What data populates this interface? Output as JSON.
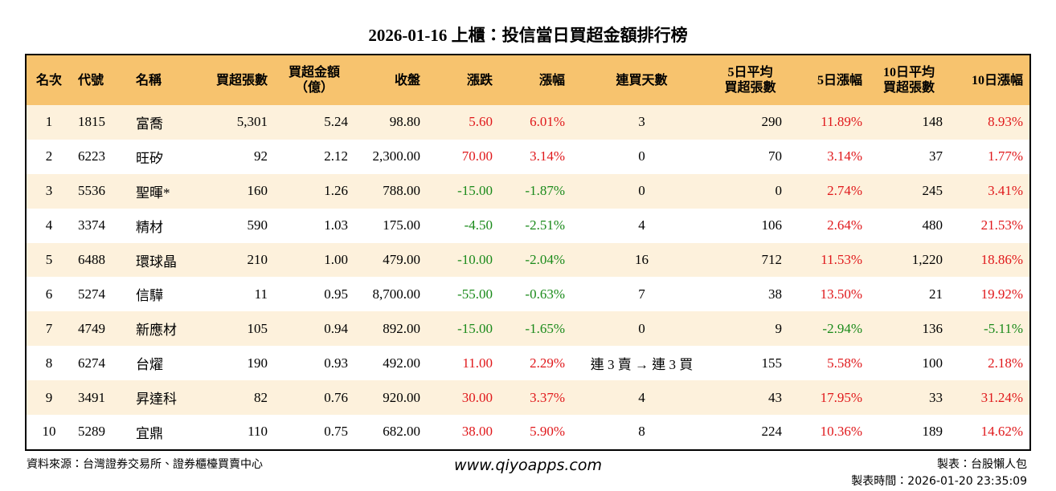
{
  "title": "2026-01-16 上櫃：投信當日買超金額排行榜",
  "table": {
    "header": [
      [
        "名次"
      ],
      [
        "代號"
      ],
      [
        "名稱"
      ],
      [
        "買超張數"
      ],
      [
        "買超金額",
        "（億）"
      ],
      [
        "收盤"
      ],
      [
        "漲跌"
      ],
      [
        "漲幅"
      ],
      [
        "連買天數"
      ],
      [
        "5日平均",
        "買超張數"
      ],
      [
        "5日漲幅"
      ],
      [
        "10日平均",
        "買超張數"
      ],
      [
        "10日漲幅"
      ]
    ],
    "rows": [
      [
        "1",
        "1815",
        "富喬",
        "5,301",
        "5.24",
        "98.80",
        "5.60",
        "6.01%",
        "3",
        "290",
        "11.89%",
        "148",
        "8.93%"
      ],
      [
        "2",
        "6223",
        "旺矽",
        "92",
        "2.12",
        "2,300.00",
        "70.00",
        "3.14%",
        "0",
        "70",
        "3.14%",
        "37",
        "1.77%"
      ],
      [
        "3",
        "5536",
        "聖暉*",
        "160",
        "1.26",
        "788.00",
        "-15.00",
        "-1.87%",
        "0",
        "0",
        "2.74%",
        "245",
        "3.41%"
      ],
      [
        "4",
        "3374",
        "精材",
        "590",
        "1.03",
        "175.00",
        "-4.50",
        "-2.51%",
        "4",
        "106",
        "2.64%",
        "480",
        "21.53%"
      ],
      [
        "5",
        "6488",
        "環球晶",
        "210",
        "1.00",
        "479.00",
        "-10.00",
        "-2.04%",
        "16",
        "712",
        "11.53%",
        "1,220",
        "18.86%"
      ],
      [
        "6",
        "5274",
        "信驊",
        "11",
        "0.95",
        "8,700.00",
        "-55.00",
        "-0.63%",
        "7",
        "38",
        "13.50%",
        "21",
        "19.92%"
      ],
      [
        "7",
        "4749",
        "新應材",
        "105",
        "0.94",
        "892.00",
        "-15.00",
        "-1.65%",
        "0",
        "9",
        "-2.94%",
        "136",
        "-5.11%"
      ],
      [
        "8",
        "6274",
        "台燿",
        "190",
        "0.93",
        "492.00",
        "11.00",
        "2.29%",
        "連 3 賣 → 連 3 買",
        "155",
        "5.58%",
        "100",
        "2.18%"
      ],
      [
        "9",
        "3491",
        "昇達科",
        "82",
        "0.76",
        "920.00",
        "30.00",
        "3.37%",
        "4",
        "43",
        "17.95%",
        "33",
        "31.24%"
      ],
      [
        "10",
        "5289",
        "宜鼎",
        "110",
        "0.75",
        "682.00",
        "38.00",
        "5.90%",
        "8",
        "224",
        "10.36%",
        "189",
        "14.62%"
      ]
    ]
  },
  "footer": {
    "source": "資料來源：台灣證券交易所、證券櫃檯買賣中心",
    "website": "www.qiyoapps.com",
    "maker": "製表：台股懶人包",
    "time": "製表時間：2026-01-20 23:35:09"
  }
}
